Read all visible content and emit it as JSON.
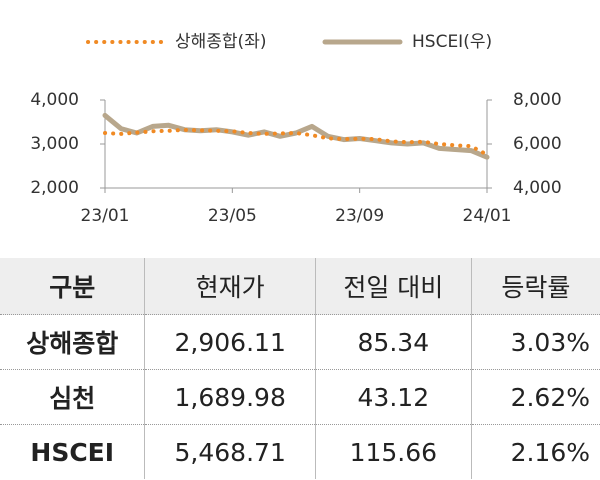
{
  "chart_data": {
    "type": "line",
    "categories": [
      "23/01",
      null,
      null,
      null,
      null,
      null,
      null,
      null,
      "23/05",
      null,
      null,
      null,
      null,
      null,
      null,
      null,
      "23/09",
      null,
      null,
      null,
      null,
      null,
      null,
      null,
      "24/01"
    ],
    "series": [
      {
        "name": "상해종합(좌)",
        "color": "#f08a24",
        "values": [
          3250,
          3230,
          3260,
          3290,
          3300,
          3320,
          3310,
          3300,
          3290,
          3250,
          3230,
          3240,
          3250,
          3200,
          3130,
          3110,
          3120,
          3110,
          3060,
          3040,
          3050,
          3000,
          2970,
          2950,
          2760
        ]
      },
      {
        "name": "HSCEI(우)",
        "color": "#b8a78c",
        "axis": "y2",
        "values": [
          7300,
          6700,
          6500,
          6800,
          6850,
          6650,
          6600,
          6650,
          6550,
          6400,
          6550,
          6350,
          6500,
          6800,
          6350,
          6200,
          6250,
          6150,
          6050,
          6000,
          6050,
          5800,
          5750,
          5700,
          5400
        ]
      }
    ],
    "ylim": [
      2000,
      4000
    ],
    "yticks": [
      {
        "value": 2000,
        "label": "2,000"
      },
      {
        "value": 3000,
        "label": "3,000"
      },
      {
        "value": 4000,
        "label": "4,000"
      }
    ],
    "y2lim": [
      4000,
      8000
    ],
    "y2ticks": [
      {
        "value": 4000,
        "label": "4,000"
      },
      {
        "value": 6000,
        "label": "6,000"
      },
      {
        "value": 8000,
        "label": "8,000"
      }
    ],
    "legend": "top"
  },
  "table": {
    "header": [
      "구분",
      "현재가",
      "전일 대비",
      "등락률"
    ],
    "rows": [
      [
        "상해종합",
        "2,906.11",
        "85.34",
        "3.03%"
      ],
      [
        "심천",
        "1,689.98",
        "43.12",
        "2.62%"
      ],
      [
        "HSCEI",
        "5,468.71",
        "115.66",
        "2.16%"
      ]
    ]
  }
}
